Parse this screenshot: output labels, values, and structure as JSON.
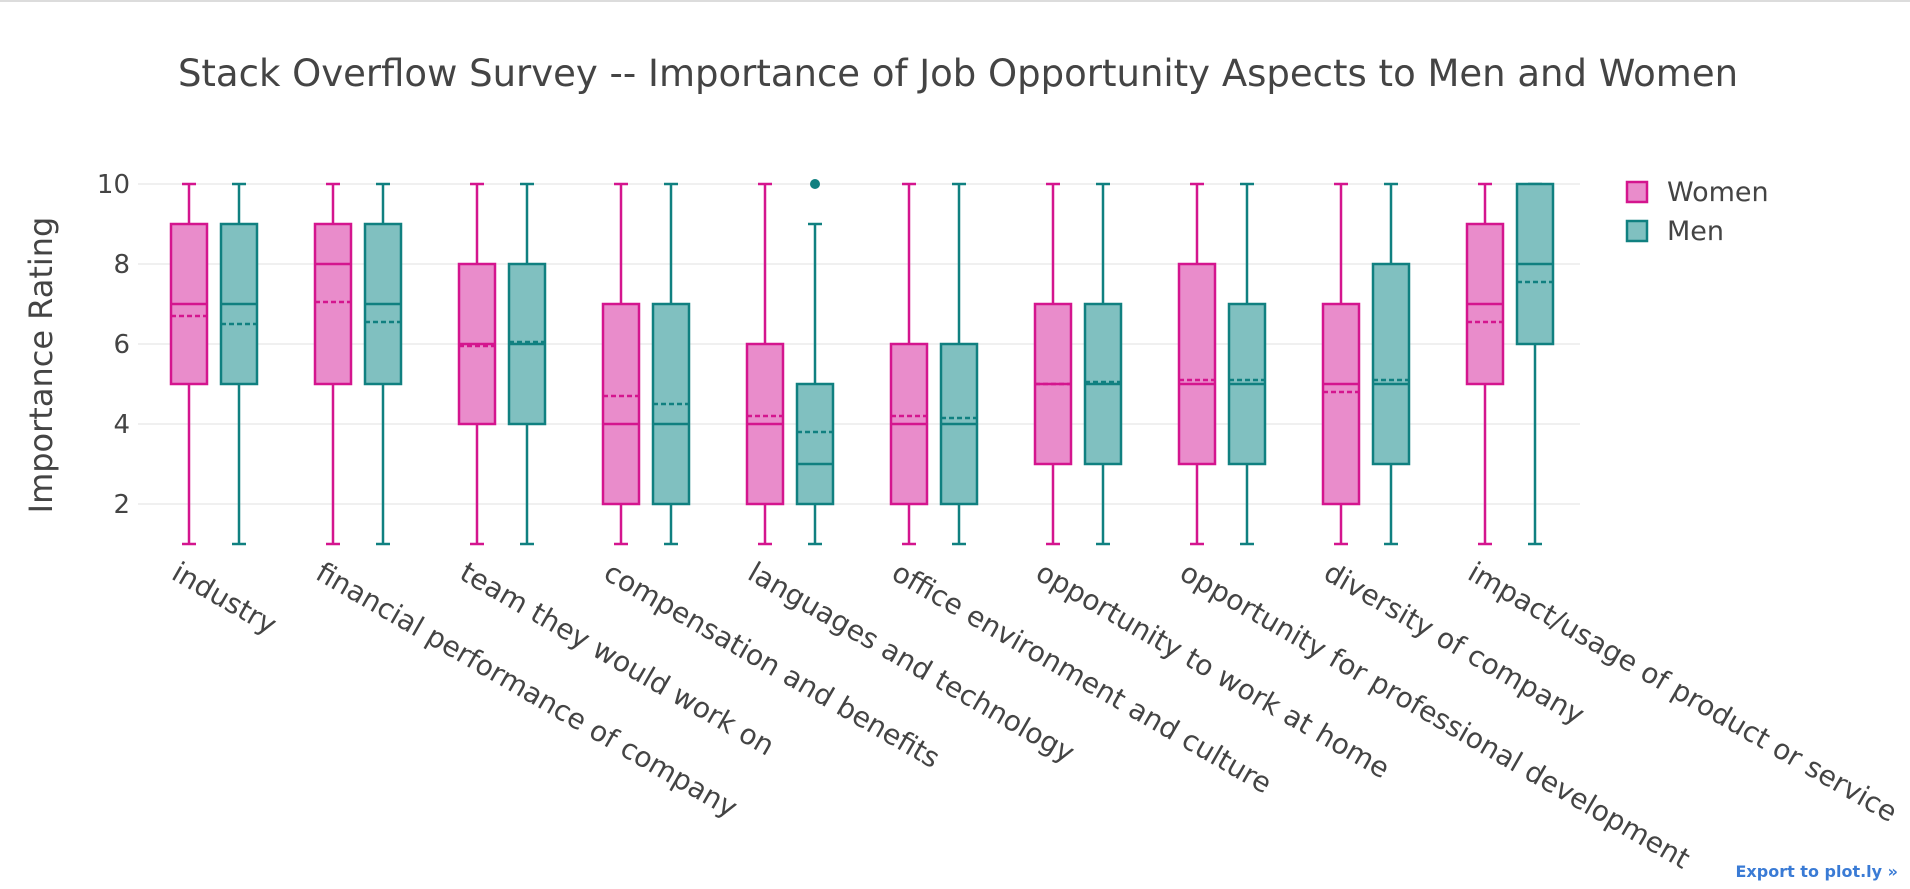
{
  "chart_data": {
    "type": "box",
    "title": "Stack Overflow Survey -- Importance of Job Opportunity Aspects to Men and Women",
    "ylabel": "Importance Rating",
    "xlabel": "",
    "ylim": [
      0.8,
      10.3
    ],
    "yticks": [
      2,
      4,
      6,
      8,
      10
    ],
    "grid": true,
    "legend_position": "top-right",
    "categories": [
      "industry",
      "financial performance of company",
      "team they would work on",
      "compensation and benefits",
      "languages and technology",
      "office environment and culture",
      "opportunity to work at home",
      "opportunity for professional development",
      "diversity of company",
      "impact/usage of product or service"
    ],
    "series": [
      {
        "name": "Women",
        "color": "#d4158e",
        "fill": "#e98ccb",
        "boxes": [
          {
            "min": 1,
            "q1": 5,
            "median": 7,
            "q3": 9,
            "max": 10,
            "mean": 6.7
          },
          {
            "min": 1,
            "q1": 5,
            "median": 8,
            "q3": 9,
            "max": 10,
            "mean": 7.05
          },
          {
            "min": 1,
            "q1": 4,
            "median": 6,
            "q3": 8,
            "max": 10,
            "mean": 5.95
          },
          {
            "min": 1,
            "q1": 2,
            "median": 4,
            "q3": 7,
            "max": 10,
            "mean": 4.7
          },
          {
            "min": 1,
            "q1": 2,
            "median": 4,
            "q3": 6,
            "max": 10,
            "mean": 4.2
          },
          {
            "min": 1,
            "q1": 2,
            "median": 4,
            "q3": 6,
            "max": 10,
            "mean": 4.2
          },
          {
            "min": 1,
            "q1": 3,
            "median": 5,
            "q3": 7,
            "max": 10,
            "mean": 5.0
          },
          {
            "min": 1,
            "q1": 3,
            "median": 5,
            "q3": 8,
            "max": 10,
            "mean": 5.1
          },
          {
            "min": 1,
            "q1": 2,
            "median": 5,
            "q3": 7,
            "max": 10,
            "mean": 4.8
          },
          {
            "min": 1,
            "q1": 5,
            "median": 7,
            "q3": 9,
            "max": 10,
            "mean": 6.55
          }
        ]
      },
      {
        "name": "Men",
        "color": "#108080",
        "fill": "#80c0c0",
        "boxes": [
          {
            "min": 1,
            "q1": 5,
            "median": 7,
            "q3": 9,
            "max": 10,
            "mean": 6.5
          },
          {
            "min": 1,
            "q1": 5,
            "median": 7,
            "q3": 9,
            "max": 10,
            "mean": 6.55
          },
          {
            "min": 1,
            "q1": 4,
            "median": 6,
            "q3": 8,
            "max": 10,
            "mean": 6.05
          },
          {
            "min": 1,
            "q1": 2,
            "median": 4,
            "q3": 7,
            "max": 10,
            "mean": 4.5
          },
          {
            "min": 1,
            "q1": 2,
            "median": 3,
            "q3": 5,
            "max": 9,
            "mean": 3.8,
            "outliers": [
              10
            ]
          },
          {
            "min": 1,
            "q1": 2,
            "median": 4,
            "q3": 6,
            "max": 10,
            "mean": 4.15
          },
          {
            "min": 1,
            "q1": 3,
            "median": 5,
            "q3": 7,
            "max": 10,
            "mean": 5.05
          },
          {
            "min": 1,
            "q1": 3,
            "median": 5,
            "q3": 7,
            "max": 10,
            "mean": 5.1
          },
          {
            "min": 1,
            "q1": 3,
            "median": 5,
            "q3": 8,
            "max": 10,
            "mean": 5.1
          },
          {
            "min": 1,
            "q1": 6,
            "median": 8,
            "q3": 10,
            "max": 10,
            "mean": 7.55
          }
        ]
      }
    ]
  },
  "export_link": "Export to plot.ly »"
}
